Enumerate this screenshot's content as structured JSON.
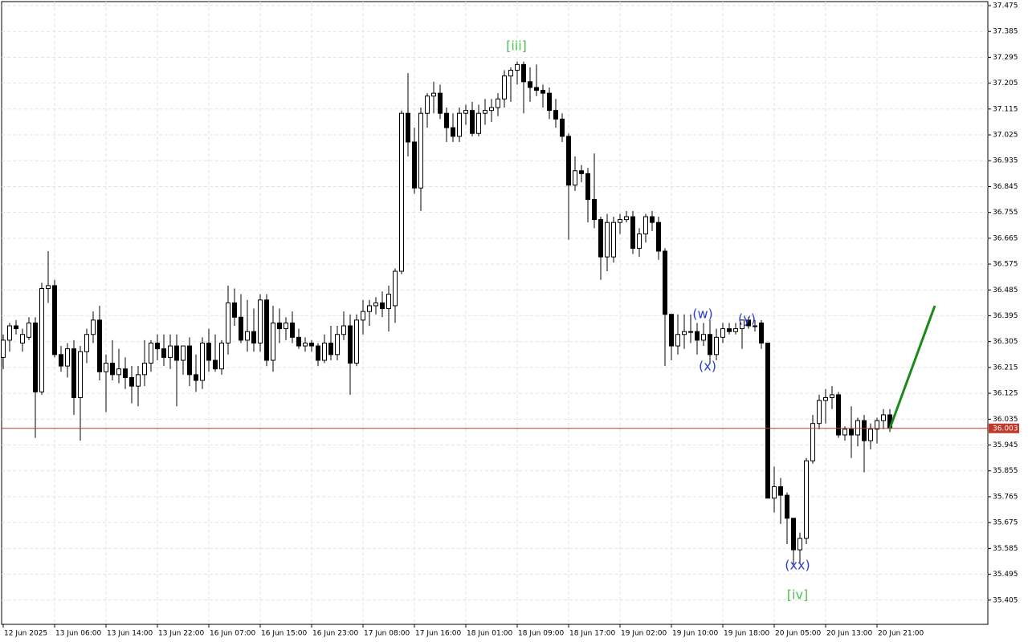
{
  "chart_data": {
    "type": "candlestick",
    "categories": [
      "12 Jun 2025",
      null,
      null,
      null,
      null,
      null,
      null,
      null,
      "13 Jun 06:00",
      null,
      null,
      null,
      null,
      null,
      null,
      null,
      "13 Jun 14:00",
      null,
      null,
      null,
      null,
      null,
      null,
      null,
      "13 Jun 22:00",
      null,
      null,
      null,
      null,
      null,
      null,
      null,
      "16 Jun 07:00",
      null,
      null,
      null,
      null,
      null,
      null,
      null,
      "16 Jun 15:00",
      null,
      null,
      null,
      null,
      null,
      null,
      null,
      "16 Jun 23:00",
      null,
      null,
      null,
      null,
      null,
      null,
      null,
      "17 Jun 08:00",
      null,
      null,
      null,
      null,
      null,
      null,
      null,
      "17 Jun 16:00",
      null,
      null,
      null,
      null,
      null,
      null,
      null,
      "18 Jun 01:00",
      null,
      null,
      null,
      null,
      null,
      null,
      null,
      "18 Jun 09:00",
      null,
      null,
      null,
      null,
      null,
      null,
      null,
      "18 Jun 17:00",
      null,
      null,
      null,
      null,
      null,
      null,
      null,
      "19 Jun 02:00",
      null,
      null,
      null,
      null,
      null,
      null,
      null,
      "19 Jun 10:00",
      null,
      null,
      null,
      null,
      null,
      null,
      null,
      "19 Jun 18:00",
      null,
      null,
      null,
      null,
      null,
      null,
      null,
      "20 Jun 05:00",
      null,
      null,
      null,
      null,
      null,
      null,
      null,
      "20 Jun 13:00",
      null,
      null,
      null,
      null,
      null,
      null,
      null,
      "20 Jun 21:00",
      null,
      null,
      null,
      null,
      null,
      null,
      null,
      null,
      null
    ],
    "ohlc": [
      [
        36.25,
        36.33,
        36.21,
        36.31
      ],
      [
        36.31,
        36.37,
        36.27,
        36.36
      ],
      [
        36.36,
        36.38,
        36.33,
        36.35
      ],
      [
        36.3,
        36.35,
        36.27,
        36.33
      ],
      [
        36.32,
        36.39,
        36.31,
        36.37
      ],
      [
        36.37,
        36.39,
        35.97,
        36.13
      ],
      [
        36.13,
        36.51,
        36.12,
        36.49
      ],
      [
        36.49,
        36.62,
        36.44,
        36.5
      ],
      [
        36.5,
        36.52,
        36.25,
        36.26
      ],
      [
        36.26,
        36.29,
        36.2,
        36.22
      ],
      [
        36.22,
        36.3,
        36.18,
        36.28
      ],
      [
        36.28,
        36.31,
        36.05,
        36.11
      ],
      [
        36.11,
        36.29,
        35.96,
        36.27
      ],
      [
        36.27,
        36.35,
        36.23,
        36.33
      ],
      [
        36.33,
        36.41,
        36.3,
        36.38
      ],
      [
        36.38,
        36.43,
        36.17,
        36.2
      ],
      [
        36.2,
        36.26,
        36.06,
        36.23
      ],
      [
        36.23,
        36.31,
        36.17,
        36.19
      ],
      [
        36.19,
        36.28,
        36.16,
        36.21
      ],
      [
        36.21,
        36.25,
        36.14,
        36.18
      ],
      [
        36.18,
        36.22,
        36.09,
        36.15
      ],
      [
        36.15,
        36.22,
        36.08,
        36.19
      ],
      [
        36.19,
        36.31,
        36.15,
        36.23
      ],
      [
        36.23,
        36.31,
        36.2,
        36.3
      ],
      [
        36.3,
        36.33,
        36.24,
        36.28
      ],
      [
        36.28,
        36.33,
        36.22,
        36.25
      ],
      [
        36.25,
        36.33,
        36.21,
        36.29
      ],
      [
        36.29,
        36.33,
        36.08,
        36.24
      ],
      [
        36.24,
        36.27,
        36.19,
        36.29
      ],
      [
        36.29,
        36.32,
        36.15,
        36.19
      ],
      [
        36.19,
        36.26,
        36.13,
        36.17
      ],
      [
        36.17,
        36.32,
        36.14,
        36.3
      ],
      [
        36.3,
        36.35,
        36.2,
        36.24
      ],
      [
        36.24,
        36.33,
        36.2,
        36.21
      ],
      [
        36.21,
        36.31,
        36.19,
        36.3
      ],
      [
        36.3,
        36.5,
        36.26,
        36.44
      ],
      [
        36.44,
        36.49,
        36.36,
        36.39
      ],
      [
        36.39,
        36.47,
        36.3,
        36.31
      ],
      [
        36.31,
        36.45,
        36.27,
        36.34
      ],
      [
        36.34,
        36.42,
        36.27,
        36.3
      ],
      [
        36.3,
        36.47,
        36.27,
        36.45
      ],
      [
        36.45,
        36.47,
        36.22,
        36.24
      ],
      [
        36.24,
        36.43,
        36.2,
        36.37
      ],
      [
        36.37,
        36.42,
        36.3,
        36.35
      ],
      [
        36.35,
        36.39,
        36.31,
        36.37
      ],
      [
        36.37,
        36.41,
        36.3,
        36.32
      ],
      [
        36.32,
        36.35,
        36.28,
        36.29
      ],
      [
        36.29,
        36.32,
        36.27,
        36.3
      ],
      [
        36.3,
        36.31,
        36.27,
        36.29
      ],
      [
        36.29,
        36.3,
        36.22,
        36.24
      ],
      [
        36.24,
        36.33,
        36.23,
        36.3
      ],
      [
        36.3,
        36.36,
        36.24,
        36.26
      ],
      [
        36.26,
        36.36,
        36.24,
        36.33
      ],
      [
        36.33,
        36.41,
        36.31,
        36.36
      ],
      [
        36.36,
        36.4,
        36.12,
        36.23
      ],
      [
        36.23,
        36.4,
        36.22,
        36.38
      ],
      [
        36.38,
        36.45,
        36.33,
        36.41
      ],
      [
        36.41,
        36.45,
        36.36,
        36.43
      ],
      [
        36.43,
        36.46,
        36.4,
        36.44
      ],
      [
        36.44,
        36.48,
        36.39,
        36.42
      ],
      [
        36.42,
        36.5,
        36.34,
        36.47
      ],
      [
        36.43,
        36.56,
        36.37,
        36.55
      ],
      [
        36.55,
        37.11,
        36.54,
        37.1
      ],
      [
        37.1,
        37.24,
        36.95,
        37.0
      ],
      [
        37.0,
        37.05,
        36.82,
        36.84
      ],
      [
        36.84,
        37.12,
        36.76,
        37.1
      ],
      [
        37.1,
        37.17,
        37.05,
        37.16
      ],
      [
        37.16,
        37.21,
        37.1,
        37.17
      ],
      [
        37.17,
        37.2,
        37.08,
        37.1
      ],
      [
        37.1,
        37.12,
        37.0,
        37.05
      ],
      [
        37.05,
        37.1,
        37.0,
        37.02
      ],
      [
        37.02,
        37.12,
        37.0,
        37.1
      ],
      [
        37.1,
        37.13,
        37.06,
        37.11
      ],
      [
        37.11,
        37.14,
        37.02,
        37.03
      ],
      [
        37.03,
        37.13,
        37.02,
        37.1
      ],
      [
        37.1,
        37.15,
        37.06,
        37.11
      ],
      [
        37.11,
        37.15,
        37.07,
        37.12
      ],
      [
        37.12,
        37.17,
        37.09,
        37.15
      ],
      [
        37.15,
        37.25,
        37.12,
        37.23
      ],
      [
        37.23,
        37.26,
        37.14,
        37.25
      ],
      [
        37.25,
        37.28,
        37.2,
        37.27
      ],
      [
        37.27,
        37.28,
        37.1,
        37.21
      ],
      [
        37.21,
        37.26,
        37.14,
        37.19
      ],
      [
        37.19,
        37.27,
        37.16,
        37.18
      ],
      [
        37.18,
        37.2,
        37.12,
        37.17
      ],
      [
        37.17,
        37.19,
        37.08,
        37.11
      ],
      [
        37.11,
        37.15,
        37.05,
        37.08
      ],
      [
        37.08,
        37.1,
        37.0,
        37.02
      ],
      [
        37.02,
        37.03,
        36.66,
        36.85
      ],
      [
        36.85,
        36.95,
        36.83,
        36.9
      ],
      [
        36.9,
        36.92,
        36.86,
        36.89
      ],
      [
        36.89,
        36.91,
        36.72,
        36.8
      ],
      [
        36.8,
        36.96,
        36.7,
        36.73
      ],
      [
        36.73,
        36.74,
        36.52,
        36.6
      ],
      [
        36.6,
        36.75,
        36.55,
        36.72
      ],
      [
        36.6,
        36.74,
        36.58,
        36.72
      ],
      [
        36.72,
        36.75,
        36.68,
        36.73
      ],
      [
        36.73,
        36.76,
        36.72,
        36.74
      ],
      [
        36.74,
        36.76,
        36.61,
        36.63
      ],
      [
        36.63,
        36.7,
        36.6,
        36.68
      ],
      [
        36.68,
        36.75,
        36.65,
        36.74
      ],
      [
        36.74,
        36.76,
        36.69,
        36.72
      ],
      [
        36.72,
        36.74,
        36.59,
        36.62
      ],
      [
        36.62,
        36.63,
        36.22,
        36.4
      ],
      [
        36.4,
        36.4,
        36.24,
        36.29
      ],
      [
        36.29,
        36.4,
        36.26,
        36.33
      ],
      [
        36.33,
        36.4,
        36.28,
        36.34
      ],
      [
        36.34,
        36.4,
        36.3,
        36.34
      ],
      [
        36.34,
        36.37,
        36.26,
        36.31
      ],
      [
        36.31,
        36.37,
        36.29,
        36.33
      ],
      [
        36.33,
        36.38,
        36.23,
        36.26
      ],
      [
        36.26,
        36.35,
        36.24,
        36.32
      ],
      [
        36.32,
        36.37,
        36.3,
        36.35
      ],
      [
        36.35,
        36.37,
        36.33,
        36.34
      ],
      [
        36.34,
        36.37,
        36.33,
        36.35
      ],
      [
        36.35,
        36.38,
        36.28,
        36.38
      ],
      [
        36.38,
        36.39,
        36.35,
        36.36
      ],
      [
        36.36,
        36.38,
        36.34,
        36.36
      ],
      [
        36.37,
        36.38,
        36.28,
        36.3
      ],
      [
        36.3,
        36.3,
        35.76,
        35.76
      ],
      [
        35.76,
        35.87,
        35.71,
        35.8
      ],
      [
        35.8,
        35.83,
        35.67,
        35.77
      ],
      [
        35.77,
        35.78,
        35.6,
        35.69
      ],
      [
        35.69,
        35.69,
        35.53,
        35.58
      ],
      [
        35.58,
        35.64,
        35.53,
        35.62
      ],
      [
        35.62,
        35.9,
        35.6,
        35.89
      ],
      [
        35.89,
        36.05,
        35.88,
        36.02
      ],
      [
        36.02,
        36.12,
        36.0,
        36.1
      ],
      [
        36.1,
        36.14,
        36.02,
        36.11
      ],
      [
        36.11,
        36.15,
        36.07,
        36.12
      ],
      [
        36.12,
        36.13,
        35.97,
        35.98
      ],
      [
        35.98,
        36.01,
        35.96,
        36.0
      ],
      [
        36.0,
        36.08,
        35.9,
        35.98
      ],
      [
        35.98,
        36.04,
        35.94,
        36.03
      ],
      [
        36.03,
        36.05,
        35.85,
        35.96
      ],
      [
        35.96,
        36.02,
        35.93,
        36.0
      ],
      [
        36.0,
        36.04,
        35.95,
        36.03
      ],
      [
        36.03,
        36.07,
        36.0,
        36.05
      ],
      [
        36.05,
        36.07,
        35.99,
        36.003
      ]
    ],
    "ylim": [
      35.3205,
      37.489
    ],
    "yticks": [
      37.475,
      37.385,
      37.295,
      37.205,
      37.115,
      37.025,
      36.935,
      36.845,
      36.755,
      36.665,
      36.575,
      36.485,
      36.395,
      36.305,
      36.215,
      36.125,
      36.035,
      35.945,
      35.855,
      35.765,
      35.675,
      35.585,
      35.495,
      35.405
    ],
    "grid": true,
    "up_color": "#ffffff",
    "down_color": "#000000",
    "last_price": {
      "value": 36.003,
      "color": "#c0392b"
    },
    "forecast": {
      "color": "#1a8a1a",
      "values": [
        36.003,
        36.43
      ]
    },
    "annotations": [
      {
        "text": "[iii]",
        "color": "#4fc24f"
      },
      {
        "text": "(w)",
        "color": "#2a3fcf"
      },
      {
        "text": "(x)",
        "color": "#2a3fcf"
      },
      {
        "text": "(y)",
        "color": "#2a3fcf"
      },
      {
        "text": "(xx)",
        "color": "#2a3fcf"
      },
      {
        "text": "[iv]",
        "color": "#4fc24f"
      }
    ]
  }
}
